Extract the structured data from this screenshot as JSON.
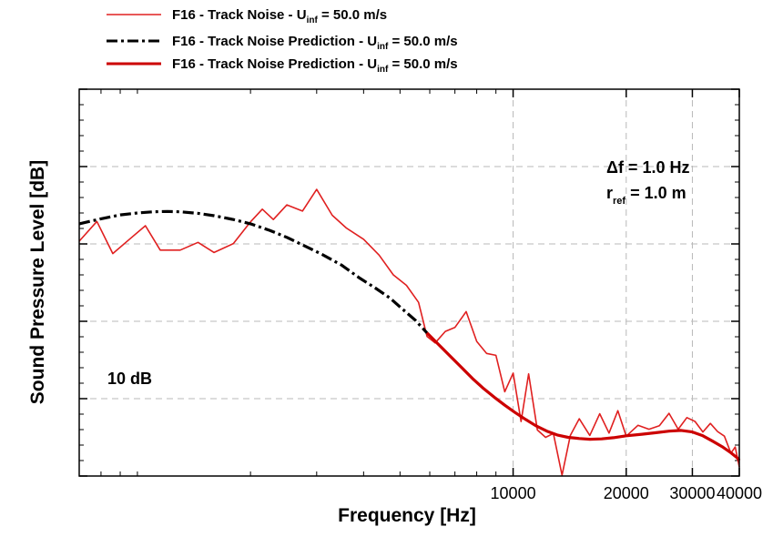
{
  "chart_data": {
    "type": "line",
    "title": "",
    "xlabel": "Frequency [Hz]",
    "ylabel": "Sound Pressure Level [dB]",
    "x_scale": "log",
    "xlim": [
      700,
      40000
    ],
    "ylim": [
      0,
      1
    ],
    "y_tick_labels": "none",
    "x_ticks": [
      10000,
      20000,
      30000,
      40000
    ],
    "x_tick_labels": [
      "10000",
      "20000",
      "30000",
      "40000"
    ],
    "grid": true,
    "legend_position": "top (above plot)",
    "legend": [
      {
        "label": "F16 - Track Noise - U",
        "sub": "inf",
        "tail": " = 50.0 m/s",
        "style": "thin-solid",
        "color": "#e02020"
      },
      {
        "label": "F16 - Track Noise Prediction - U",
        "sub": "inf",
        "tail": " = 50.0 m/s",
        "style": "dash-dot",
        "color": "#000000"
      },
      {
        "label": "F16 - Track Noise Prediction - U",
        "sub": "inf",
        "tail": " = 50.0 m/s",
        "style": "thick-solid",
        "color": "#cc0000"
      }
    ],
    "annotations": {
      "scale_bar": "10 dB",
      "delta_f": "Δf   = 1.0 Hz",
      "r_ref_main": "r",
      "r_ref_sub": "ref",
      "r_ref_value": "  = 1.0 m"
    },
    "series": [
      {
        "name": "F16 - Track Noise - U_inf = 50.0 m/s",
        "style": "thin-solid",
        "x": [
          700,
          780,
          860,
          950,
          1050,
          1150,
          1300,
          1450,
          1600,
          1800,
          2000,
          2150,
          2300,
          2500,
          2750,
          3000,
          3300,
          3600,
          4000,
          4400,
          4800,
          5200,
          5600,
          5900,
          6200,
          6600,
          7000,
          7500,
          8000,
          8500,
          9000,
          9500,
          10000,
          10500,
          11000,
          11600,
          12200,
          12800,
          13500,
          14200,
          15000,
          16000,
          17000,
          18000,
          19000,
          20000,
          21500,
          23000,
          24500,
          26000,
          27500,
          29000,
          30500,
          32000,
          33500,
          35000,
          36500,
          38000,
          39000,
          40000
        ],
        "y": [
          0.607,
          0.658,
          0.575,
          0.611,
          0.647,
          0.584,
          0.584,
          0.604,
          0.578,
          0.601,
          0.657,
          0.69,
          0.663,
          0.701,
          0.685,
          0.741,
          0.674,
          0.641,
          0.612,
          0.571,
          0.52,
          0.493,
          0.449,
          0.361,
          0.344,
          0.374,
          0.384,
          0.425,
          0.348,
          0.317,
          0.312,
          0.218,
          0.266,
          0.141,
          0.264,
          0.119,
          0.1,
          0.11,
          0.002,
          0.105,
          0.148,
          0.105,
          0.161,
          0.111,
          0.169,
          0.103,
          0.131,
          0.121,
          0.13,
          0.162,
          0.121,
          0.151,
          0.141,
          0.114,
          0.136,
          0.115,
          0.103,
          0.059,
          0.075,
          0.023
        ]
      },
      {
        "name": "F16 - Track Noise Prediction - U_inf = 50.0 m/s",
        "style": "dash-dot",
        "x": [
          700,
          800,
          900,
          1000,
          1100,
          1200,
          1300,
          1450,
          1600,
          1800,
          2000,
          2250,
          2500,
          2800,
          3100,
          3500,
          3900,
          4300,
          4700,
          5100,
          5500,
          5900
        ],
        "y": [
          0.652,
          0.665,
          0.675,
          0.68,
          0.683,
          0.684,
          0.683,
          0.679,
          0.673,
          0.663,
          0.652,
          0.635,
          0.617,
          0.594,
          0.573,
          0.545,
          0.512,
          0.486,
          0.46,
          0.43,
          0.402,
          0.37
        ]
      },
      {
        "name": "F16 - Track Noise Prediction - U_inf = 50.0 m/s",
        "style": "thick-solid",
        "x": [
          5900,
          6300,
          6800,
          7300,
          7800,
          8300,
          8900,
          9500,
          10100,
          10800,
          11500,
          12300,
          13100,
          14000,
          15000,
          16000,
          17200,
          18500,
          20000,
          22000,
          24000,
          26000,
          28000,
          30000,
          32000,
          34000,
          36000,
          38000,
          39500,
          40000
        ],
        "y": [
          0.37,
          0.342,
          0.31,
          0.28,
          0.252,
          0.228,
          0.204,
          0.183,
          0.165,
          0.146,
          0.13,
          0.116,
          0.106,
          0.1,
          0.097,
          0.095,
          0.096,
          0.099,
          0.104,
          0.108,
          0.112,
          0.116,
          0.118,
          0.114,
          0.104,
          0.09,
          0.076,
          0.06,
          0.047,
          0.04
        ]
      }
    ]
  }
}
